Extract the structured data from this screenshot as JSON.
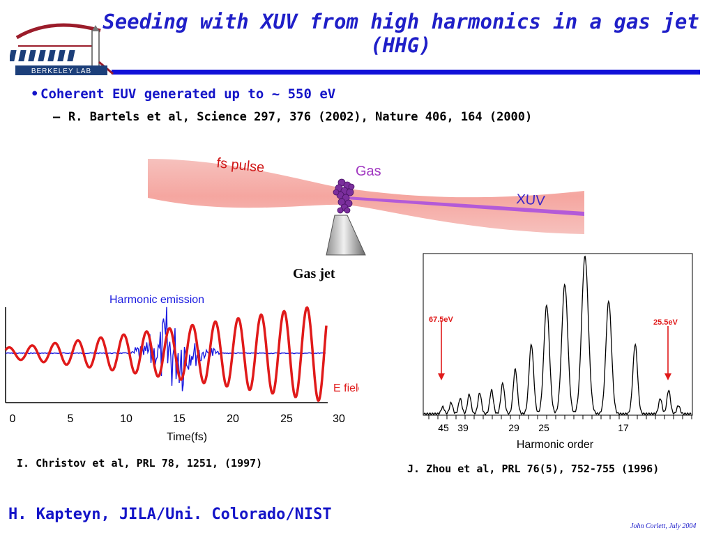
{
  "title": "Seeding with XUV from high harmonics in a gas jet (HHG)",
  "logo": {
    "text": "BERKELEY LAB",
    "color": "#9b1c2a"
  },
  "bullets": [
    {
      "text": "Coherent EUV generated up to ~ 550 eV"
    }
  ],
  "subbullets": [
    {
      "text": "R. Bartels et al, Science 297, 376 (2002), Nature 406, 164 (2000)"
    }
  ],
  "diagram": {
    "labels": {
      "pulse": "fs pulse",
      "gas": "Gas",
      "xuv": "XUV"
    },
    "caption": "Gas jet"
  },
  "left_plot": {
    "annotations": {
      "harmonic": "Harmonic emission",
      "efield": "E field"
    },
    "xlabel": "Time(fs)",
    "xticks": [
      "0",
      "5",
      "10",
      "15",
      "20",
      "25",
      "30"
    ],
    "colors": {
      "efield": "#e01a1a",
      "harmonic": "#1a1ae0"
    },
    "reference": "I. Christov et al,  PRL 78, 1251, (1997)"
  },
  "right_plot": {
    "xlabel": "Harmonic order",
    "xticks": [
      "45",
      "39",
      "29",
      "25",
      "17"
    ],
    "arrows": {
      "left": "67.5eV",
      "right": "25.5eV"
    },
    "arrow_color": "#e01a1a",
    "reference": "J. Zhou et al, PRL 76(5), 752-755 (1996)"
  },
  "footer": {
    "left": "H. Kapteyn, JILA/Uni. Colorado/NIST",
    "right": "John Corlett,  July 2004"
  }
}
